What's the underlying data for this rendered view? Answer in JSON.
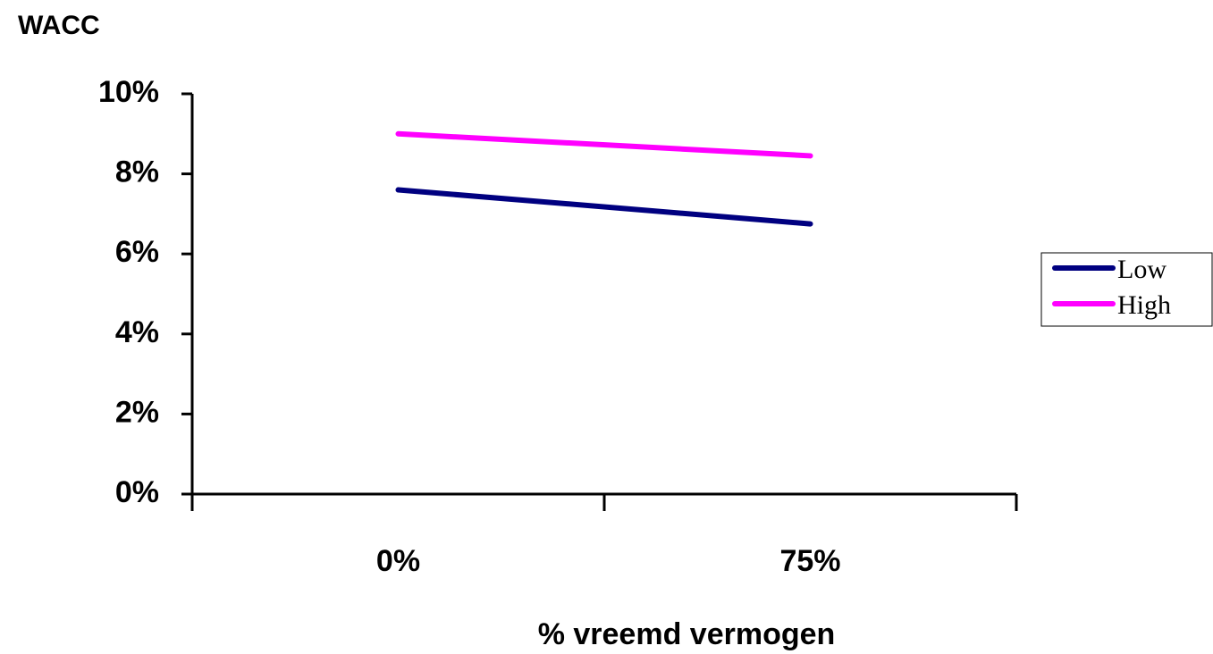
{
  "chart_data": {
    "type": "line",
    "title": "WACC",
    "xlabel": "% vreemd vermogen",
    "categories": [
      "0%",
      "75%"
    ],
    "series": [
      {
        "name": "Low",
        "color": "#000080",
        "values": [
          7.6,
          6.75
        ]
      },
      {
        "name": "High",
        "color": "#ff00ff",
        "values": [
          9.0,
          8.45
        ]
      }
    ],
    "ylim": [
      0,
      10
    ],
    "yticks": [
      {
        "value": 0,
        "label": "0%"
      },
      {
        "value": 2,
        "label": "2%"
      },
      {
        "value": 4,
        "label": "4%"
      },
      {
        "value": 6,
        "label": "6%"
      },
      {
        "value": 8,
        "label": "8%"
      },
      {
        "value": 10,
        "label": "10%"
      }
    ],
    "grid": false,
    "legend": "right"
  }
}
